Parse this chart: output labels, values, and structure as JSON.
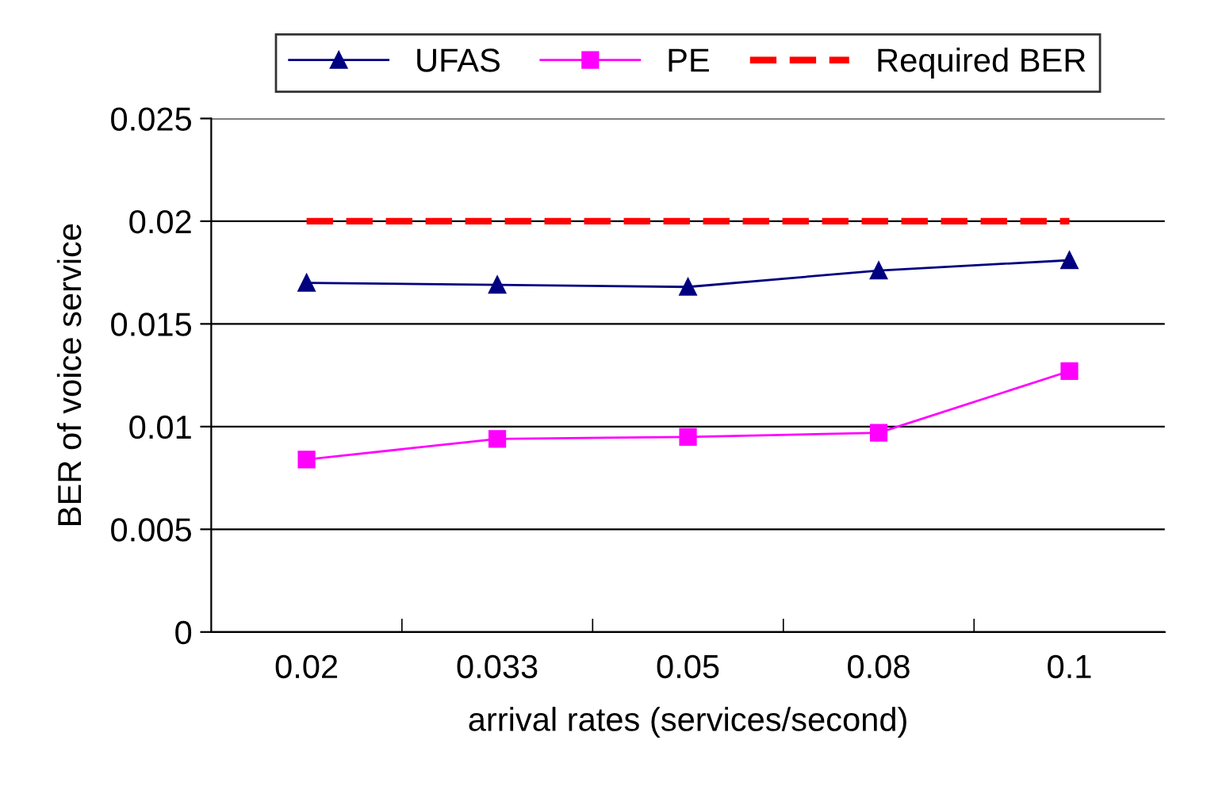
{
  "chart_data": {
    "type": "line",
    "xlabel": "arrival rates (services/second)",
    "ylabel": "BER of voice service",
    "categories": [
      "0.02",
      "0.033",
      "0.05",
      "0.08",
      "0.1"
    ],
    "series": [
      {
        "name": "UFAS",
        "color": "#000080",
        "marker": "triangle",
        "line_style": "solid",
        "values": [
          0.017,
          0.0169,
          0.0168,
          0.0176,
          0.0181
        ]
      },
      {
        "name": "PE",
        "color": "#ff00ff",
        "marker": "square",
        "line_style": "solid",
        "values": [
          0.0084,
          0.0094,
          0.0095,
          0.0097,
          0.0127
        ]
      },
      {
        "name": "Required BER",
        "color": "#ff0000",
        "marker": "none",
        "line_style": "dashed",
        "values": [
          0.02,
          0.02,
          0.02,
          0.02,
          0.02
        ]
      }
    ],
    "ylim": [
      0,
      0.025
    ],
    "yticks": [
      {
        "value": 0,
        "label": "0"
      },
      {
        "value": 0.005,
        "label": "0.005"
      },
      {
        "value": 0.01,
        "label": "0.01"
      },
      {
        "value": 0.015,
        "label": "0.015"
      },
      {
        "value": 0.02,
        "label": "0.02"
      },
      {
        "value": 0.025,
        "label": "0.025"
      }
    ],
    "grid": "y",
    "legend": "top"
  }
}
